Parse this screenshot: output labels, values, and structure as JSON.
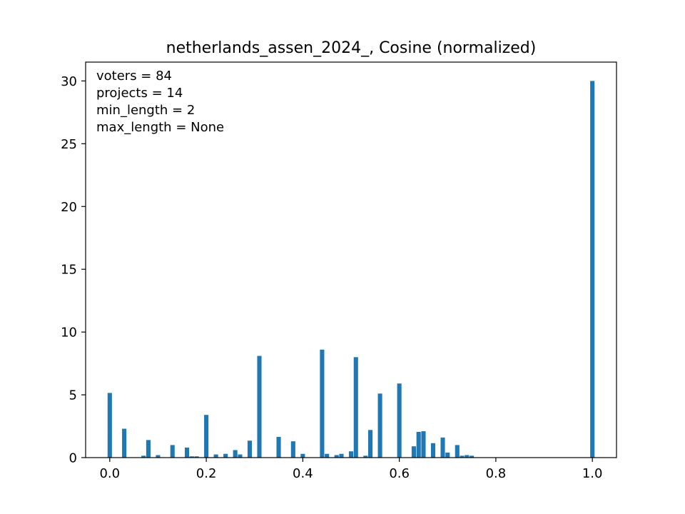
{
  "chart_data": {
    "type": "bar",
    "title": "netherlands_assen_2024_, Cosine (normalized)",
    "xlabel": "",
    "ylabel": "",
    "xlim": [
      -0.05,
      1.05
    ],
    "ylim": [
      0,
      31.5
    ],
    "bin_width": 0.01,
    "x_ticks": [
      {
        "value": 0.0,
        "label": "0.0"
      },
      {
        "value": 0.2,
        "label": "0.2"
      },
      {
        "value": 0.4,
        "label": "0.4"
      },
      {
        "value": 0.6,
        "label": "0.6"
      },
      {
        "value": 0.8,
        "label": "0.8"
      },
      {
        "value": 1.0,
        "label": "1.0"
      }
    ],
    "y_ticks": [
      {
        "value": 0,
        "label": "0"
      },
      {
        "value": 5,
        "label": "5"
      },
      {
        "value": 10,
        "label": "10"
      },
      {
        "value": 15,
        "label": "15"
      },
      {
        "value": 20,
        "label": "20"
      },
      {
        "value": 25,
        "label": "25"
      },
      {
        "value": 30,
        "label": "30"
      }
    ],
    "annotations": [
      "voters = 84",
      "projects = 14",
      "min_length = 2",
      "max_length = None"
    ],
    "grid": false,
    "bar_color": "#1f77b4",
    "bins": [
      {
        "x": 0.0,
        "value": 5.15
      },
      {
        "x": 0.03,
        "value": 2.3
      },
      {
        "x": 0.07,
        "value": 0.15
      },
      {
        "x": 0.08,
        "value": 1.4
      },
      {
        "x": 0.1,
        "value": 0.2
      },
      {
        "x": 0.13,
        "value": 1.0
      },
      {
        "x": 0.16,
        "value": 0.8
      },
      {
        "x": 0.17,
        "value": 0.1
      },
      {
        "x": 0.18,
        "value": 0.1
      },
      {
        "x": 0.2,
        "value": 3.4
      },
      {
        "x": 0.22,
        "value": 0.25
      },
      {
        "x": 0.24,
        "value": 0.3
      },
      {
        "x": 0.26,
        "value": 0.6
      },
      {
        "x": 0.27,
        "value": 0.25
      },
      {
        "x": 0.29,
        "value": 1.35
      },
      {
        "x": 0.31,
        "value": 8.1
      },
      {
        "x": 0.35,
        "value": 1.65
      },
      {
        "x": 0.38,
        "value": 1.3
      },
      {
        "x": 0.4,
        "value": 0.3
      },
      {
        "x": 0.44,
        "value": 8.6
      },
      {
        "x": 0.45,
        "value": 0.3
      },
      {
        "x": 0.47,
        "value": 0.2
      },
      {
        "x": 0.48,
        "value": 0.3
      },
      {
        "x": 0.5,
        "value": 0.5
      },
      {
        "x": 0.51,
        "value": 8.0
      },
      {
        "x": 0.53,
        "value": 0.15
      },
      {
        "x": 0.54,
        "value": 2.2
      },
      {
        "x": 0.56,
        "value": 5.1
      },
      {
        "x": 0.6,
        "value": 5.9
      },
      {
        "x": 0.63,
        "value": 0.9
      },
      {
        "x": 0.64,
        "value": 2.05
      },
      {
        "x": 0.65,
        "value": 2.1
      },
      {
        "x": 0.67,
        "value": 1.15
      },
      {
        "x": 0.69,
        "value": 1.6
      },
      {
        "x": 0.7,
        "value": 0.4
      },
      {
        "x": 0.72,
        "value": 1.0
      },
      {
        "x": 0.73,
        "value": 0.15
      },
      {
        "x": 0.74,
        "value": 0.2
      },
      {
        "x": 0.75,
        "value": 0.15
      },
      {
        "x": 1.0,
        "value": 30.0
      }
    ]
  }
}
